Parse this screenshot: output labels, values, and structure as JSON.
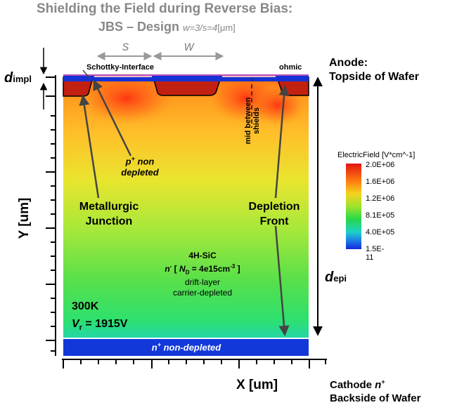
{
  "title": {
    "line1": "Shielding the Field during Reverse Bias:",
    "line2_main": "JBS – Design",
    "line2_params": "w=3/s=4",
    "line2_unit": "[μm]"
  },
  "dimensions": {
    "s": "s",
    "w": "w"
  },
  "labels": {
    "d_impl": "d",
    "d_impl_sub": "impl",
    "d_epi": "d",
    "d_epi_sub": "epi",
    "schottky": "Schottky-Interface",
    "ohmic": "ohmic",
    "anode_line1": "Anode:",
    "anode_line2": "Topside of Wafer",
    "mid_between": "mid between",
    "shields": "shields",
    "p_non_depleted_1": "p",
    "p_non_depleted_sup": "+",
    "p_non_depleted_2": " non",
    "p_non_depleted_3": "depleted",
    "metallurgic_1": "Metallurgic",
    "metallurgic_2": "Junction",
    "depletion_1": "Depletion",
    "depletion_2": "Front",
    "material": "4H-SiC",
    "doping_n": "n",
    "doping_sup": "-",
    "doping_bracket_open": " [ ",
    "doping_N": "N",
    "doping_N_sub": "D",
    "doping_value": " = 4e15cm",
    "doping_exp": "-3",
    "doping_bracket_close": " ]",
    "drift_1": "drift-layer",
    "drift_2": "carrier-depleted",
    "temp": "300K",
    "vr_label": "V",
    "vr_sub": "r",
    "vr_value": " = 1915V",
    "n_non_depleted_n": "n",
    "n_non_depleted_sup": "+",
    "n_non_depleted_text": " non-depleted",
    "y_axis": "Y [um]",
    "x_axis": "X [um]",
    "cathode_1": "Cathode ",
    "cathode_n": "n",
    "cathode_sup": "+",
    "cathode_2": "Backside of Wafer"
  },
  "legend": {
    "title": "ElectricField [V*cm^-1]",
    "ticks": [
      "2.0E+06",
      "1.6E+06",
      "1.2E+06",
      "8.1E+05",
      "4.0E+05",
      "1.5E-11"
    ]
  },
  "colors": {
    "implant": "#1432d6",
    "substrate": "#1238d9",
    "arrow": "#444444",
    "title": "#888888"
  }
}
